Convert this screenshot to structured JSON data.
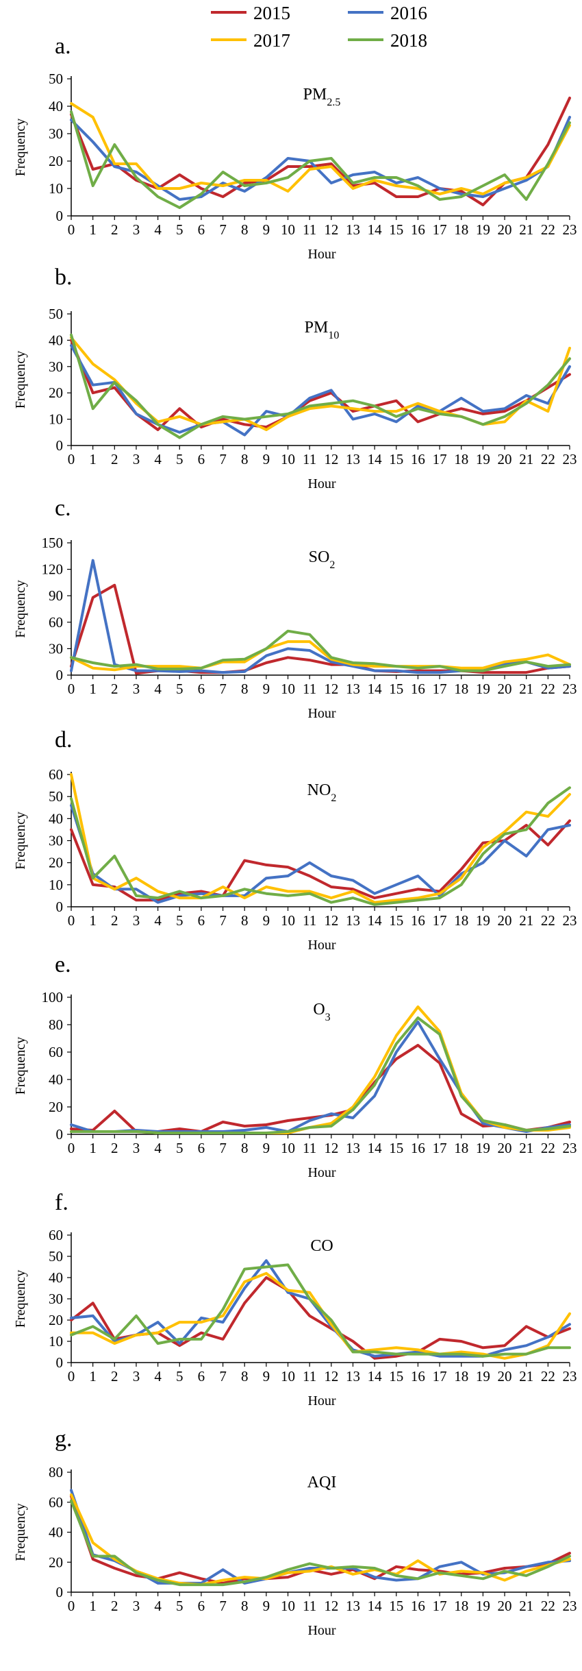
{
  "legend": [
    {
      "label": "2015",
      "color": "#c0282d"
    },
    {
      "label": "2016",
      "color": "#4472c4"
    },
    {
      "label": "2017",
      "color": "#ffc000"
    },
    {
      "label": "2018",
      "color": "#70ad47"
    }
  ],
  "chart_data": [
    {
      "type": "line",
      "panel": "a.",
      "title": "PM",
      "title_subscript": "2.5",
      "xlabel": "Hour",
      "ylabel": "Frequency",
      "ylim": [
        0,
        50
      ],
      "yticks": [
        0,
        10,
        20,
        30,
        40,
        50
      ],
      "x": [
        0,
        1,
        2,
        3,
        4,
        5,
        6,
        7,
        8,
        9,
        10,
        11,
        12,
        13,
        14,
        15,
        16,
        17,
        18,
        19,
        20,
        21,
        22,
        23
      ],
      "series": [
        {
          "name": "2015",
          "color": "#c0282d",
          "values": [
            37,
            17,
            19,
            13,
            10,
            15,
            10,
            7,
            12,
            13,
            18,
            18,
            19,
            11,
            12,
            7,
            7,
            10,
            9,
            4,
            12,
            14,
            26,
            43
          ]
        },
        {
          "name": "2016",
          "color": "#4472c4",
          "values": [
            35,
            27,
            18,
            16,
            11,
            6,
            7,
            12,
            9,
            14,
            21,
            20,
            12,
            15,
            16,
            12,
            14,
            10,
            8,
            7,
            10,
            13,
            18,
            36
          ]
        },
        {
          "name": "2017",
          "color": "#ffc000",
          "values": [
            41,
            36,
            19,
            19,
            10,
            10,
            12,
            11,
            13,
            13,
            9,
            17,
            18,
            10,
            13,
            11,
            10,
            8,
            10,
            8,
            12,
            14,
            18,
            33
          ]
        },
        {
          "name": "2018",
          "color": "#70ad47",
          "values": [
            38,
            11,
            26,
            14,
            7,
            3,
            8,
            16,
            11,
            12,
            14,
            20,
            21,
            12,
            14,
            14,
            11,
            6,
            7,
            11,
            15,
            6,
            19,
            34
          ]
        }
      ]
    },
    {
      "type": "line",
      "panel": "b.",
      "title": "PM",
      "title_subscript": "10",
      "xlabel": "Hour",
      "ylabel": "Frequency",
      "ylim": [
        0,
        50
      ],
      "yticks": [
        0,
        10,
        20,
        30,
        40,
        50
      ],
      "x": [
        0,
        1,
        2,
        3,
        4,
        5,
        6,
        7,
        8,
        9,
        10,
        11,
        12,
        13,
        14,
        15,
        16,
        17,
        18,
        19,
        20,
        21,
        22,
        23
      ],
      "series": [
        {
          "name": "2015",
          "color": "#c0282d",
          "values": [
            40,
            20,
            22,
            12,
            6,
            14,
            7,
            10,
            8,
            7,
            11,
            17,
            20,
            13,
            15,
            17,
            9,
            12,
            14,
            12,
            13,
            17,
            22,
            27
          ]
        },
        {
          "name": "2016",
          "color": "#4472c4",
          "values": [
            38,
            23,
            24,
            12,
            8,
            5,
            8,
            9,
            4,
            13,
            11,
            18,
            21,
            10,
            12,
            9,
            15,
            13,
            18,
            13,
            14,
            19,
            16,
            30
          ]
        },
        {
          "name": "2017",
          "color": "#ffc000",
          "values": [
            41,
            31,
            25,
            16,
            9,
            11,
            8,
            9,
            10,
            6,
            11,
            14,
            15,
            14,
            13,
            13,
            16,
            13,
            11,
            8,
            9,
            17,
            13,
            37
          ]
        },
        {
          "name": "2018",
          "color": "#70ad47",
          "values": [
            42,
            14,
            24,
            17,
            8,
            3,
            8,
            11,
            10,
            11,
            12,
            15,
            16,
            17,
            15,
            11,
            14,
            12,
            11,
            8,
            11,
            16,
            23,
            33
          ]
        }
      ]
    },
    {
      "type": "line",
      "panel": "c.",
      "title": "SO",
      "title_subscript": "2",
      "xlabel": "Hour",
      "ylabel": "Frequency",
      "ylim": [
        0,
        150
      ],
      "yticks": [
        0,
        30,
        60,
        90,
        120,
        150
      ],
      "x": [
        0,
        1,
        2,
        3,
        4,
        5,
        6,
        7,
        8,
        9,
        10,
        11,
        12,
        13,
        14,
        15,
        16,
        17,
        18,
        19,
        20,
        21,
        22,
        23
      ],
      "series": [
        {
          "name": "2015",
          "color": "#c0282d",
          "values": [
            10,
            88,
            102,
            2,
            5,
            5,
            3,
            3,
            5,
            14,
            20,
            17,
            12,
            12,
            5,
            4,
            5,
            5,
            5,
            3,
            3,
            3,
            8,
            10
          ]
        },
        {
          "name": "2016",
          "color": "#4472c4",
          "values": [
            5,
            130,
            12,
            5,
            5,
            4,
            5,
            3,
            4,
            22,
            30,
            28,
            15,
            10,
            5,
            5,
            3,
            3,
            5,
            5,
            13,
            15,
            8,
            10
          ]
        },
        {
          "name": "2017",
          "color": "#ffc000",
          "values": [
            20,
            8,
            6,
            10,
            10,
            10,
            8,
            15,
            15,
            30,
            38,
            38,
            18,
            12,
            10,
            10,
            10,
            10,
            8,
            8,
            15,
            18,
            23,
            12
          ]
        },
        {
          "name": "2018",
          "color": "#70ad47",
          "values": [
            20,
            14,
            10,
            12,
            7,
            7,
            8,
            17,
            18,
            30,
            50,
            46,
            20,
            14,
            13,
            10,
            8,
            10,
            5,
            5,
            10,
            15,
            10,
            12
          ]
        }
      ]
    },
    {
      "type": "line",
      "panel": "d.",
      "title": "NO",
      "title_subscript": "2",
      "xlabel": "Hour",
      "ylabel": "Frequency",
      "ylim": [
        0,
        60
      ],
      "yticks": [
        0,
        10,
        20,
        30,
        40,
        50,
        60
      ],
      "x": [
        0,
        1,
        2,
        3,
        4,
        5,
        6,
        7,
        8,
        9,
        10,
        11,
        12,
        13,
        14,
        15,
        16,
        17,
        18,
        19,
        20,
        21,
        22,
        23
      ],
      "series": [
        {
          "name": "2015",
          "color": "#c0282d",
          "values": [
            35,
            10,
            9,
            3,
            3,
            6,
            7,
            5,
            21,
            19,
            18,
            14,
            9,
            8,
            4,
            6,
            8,
            7,
            17,
            29,
            30,
            37,
            28,
            39
          ]
        },
        {
          "name": "2016",
          "color": "#4472c4",
          "values": [
            46,
            15,
            8,
            8,
            2,
            5,
            6,
            5,
            5,
            13,
            14,
            20,
            14,
            12,
            6,
            10,
            14,
            5,
            15,
            20,
            30,
            23,
            35,
            37
          ]
        },
        {
          "name": "2017",
          "color": "#ffc000",
          "values": [
            60,
            13,
            8,
            13,
            7,
            4,
            4,
            9,
            4,
            9,
            7,
            7,
            4,
            7,
            2,
            3,
            4,
            6,
            13,
            27,
            34,
            43,
            41,
            51
          ]
        },
        {
          "name": "2018",
          "color": "#70ad47",
          "values": [
            49,
            13,
            23,
            5,
            4,
            7,
            4,
            5,
            8,
            6,
            5,
            6,
            2,
            4,
            1,
            2,
            3,
            4,
            10,
            24,
            33,
            35,
            47,
            54
          ]
        }
      ]
    },
    {
      "type": "line",
      "panel": "e.",
      "title": "O",
      "title_subscript": "3",
      "xlabel": "Hour",
      "ylabel": "Frequency",
      "ylim": [
        0,
        100
      ],
      "yticks": [
        0,
        20,
        40,
        60,
        80,
        100
      ],
      "x": [
        0,
        1,
        2,
        3,
        4,
        5,
        6,
        7,
        8,
        9,
        10,
        11,
        12,
        13,
        14,
        15,
        16,
        17,
        18,
        19,
        20,
        21,
        22,
        23
      ],
      "series": [
        {
          "name": "2015",
          "color": "#c0282d",
          "values": [
            4,
            3,
            17,
            2,
            2,
            4,
            2,
            9,
            6,
            7,
            10,
            12,
            14,
            18,
            38,
            55,
            65,
            52,
            15,
            6,
            7,
            3,
            5,
            9
          ]
        },
        {
          "name": "2016",
          "color": "#4472c4",
          "values": [
            7,
            2,
            2,
            3,
            2,
            2,
            2,
            2,
            3,
            5,
            2,
            10,
            15,
            12,
            28,
            60,
            82,
            55,
            30,
            8,
            5,
            2,
            5,
            7
          ]
        },
        {
          "name": "2017",
          "color": "#ffc000",
          "values": [
            2,
            2,
            2,
            2,
            1,
            1,
            1,
            1,
            1,
            1,
            1,
            5,
            8,
            20,
            42,
            72,
            93,
            75,
            30,
            10,
            5,
            3,
            3,
            5
          ]
        },
        {
          "name": "2018",
          "color": "#70ad47",
          "values": [
            2,
            2,
            2,
            2,
            1,
            1,
            1,
            1,
            1,
            1,
            2,
            5,
            6,
            18,
            36,
            66,
            85,
            73,
            28,
            10,
            7,
            3,
            4,
            6
          ]
        }
      ]
    },
    {
      "type": "line",
      "panel": "f.",
      "title": "CO",
      "title_subscript": "",
      "xlabel": "Hour",
      "ylabel": "Frequency",
      "ylim": [
        0,
        60
      ],
      "yticks": [
        0,
        10,
        20,
        30,
        40,
        50,
        60
      ],
      "x": [
        0,
        1,
        2,
        3,
        4,
        5,
        6,
        7,
        8,
        9,
        10,
        11,
        12,
        13,
        14,
        15,
        16,
        17,
        18,
        19,
        20,
        21,
        22,
        23
      ],
      "series": [
        {
          "name": "2015",
          "color": "#c0282d",
          "values": [
            20,
            28,
            11,
            13,
            14,
            8,
            14,
            11,
            28,
            40,
            34,
            22,
            16,
            10,
            2,
            3,
            5,
            11,
            10,
            7,
            8,
            17,
            12,
            16
          ]
        },
        {
          "name": "2016",
          "color": "#4472c4",
          "values": [
            21,
            22,
            10,
            13,
            19,
            9,
            21,
            19,
            35,
            48,
            33,
            30,
            17,
            6,
            3,
            4,
            5,
            3,
            3,
            3,
            6,
            8,
            12,
            18
          ]
        },
        {
          "name": "2017",
          "color": "#ffc000",
          "values": [
            14,
            14,
            9,
            13,
            14,
            19,
            19,
            22,
            38,
            42,
            34,
            33,
            18,
            5,
            6,
            7,
            6,
            4,
            5,
            4,
            2,
            4,
            8,
            23
          ]
        },
        {
          "name": "2018",
          "color": "#70ad47",
          "values": [
            13,
            17,
            11,
            22,
            9,
            11,
            11,
            25,
            44,
            45,
            46,
            30,
            20,
            5,
            5,
            4,
            4,
            4,
            4,
            3,
            4,
            4,
            7,
            7
          ]
        }
      ]
    },
    {
      "type": "line",
      "panel": "g.",
      "title": "AQI",
      "title_subscript": "",
      "xlabel": "Hour",
      "ylabel": "Frequency",
      "ylim": [
        0,
        80
      ],
      "yticks": [
        0,
        20,
        40,
        60,
        80
      ],
      "x": [
        0,
        1,
        2,
        3,
        4,
        5,
        6,
        7,
        8,
        9,
        10,
        11,
        12,
        13,
        14,
        15,
        16,
        17,
        18,
        19,
        20,
        21,
        22,
        23
      ],
      "series": [
        {
          "name": "2015",
          "color": "#c0282d",
          "values": [
            64,
            22,
            16,
            11,
            9,
            13,
            9,
            6,
            9,
            9,
            10,
            15,
            12,
            15,
            9,
            17,
            15,
            14,
            12,
            13,
            16,
            17,
            19,
            26
          ]
        },
        {
          "name": "2016",
          "color": "#4472c4",
          "values": [
            68,
            25,
            21,
            14,
            6,
            6,
            6,
            15,
            6,
            9,
            13,
            16,
            16,
            16,
            10,
            8,
            9,
            17,
            20,
            12,
            13,
            17,
            20,
            21
          ]
        },
        {
          "name": "2017",
          "color": "#ffc000",
          "values": [
            65,
            33,
            22,
            14,
            9,
            6,
            5,
            8,
            10,
            9,
            13,
            14,
            17,
            12,
            15,
            12,
            21,
            12,
            14,
            13,
            8,
            14,
            18,
            22
          ]
        },
        {
          "name": "2018",
          "color": "#70ad47",
          "values": [
            61,
            24,
            24,
            13,
            8,
            5,
            5,
            5,
            7,
            10,
            15,
            19,
            16,
            17,
            16,
            11,
            9,
            13,
            11,
            9,
            14,
            11,
            17,
            24
          ]
        }
      ]
    }
  ]
}
